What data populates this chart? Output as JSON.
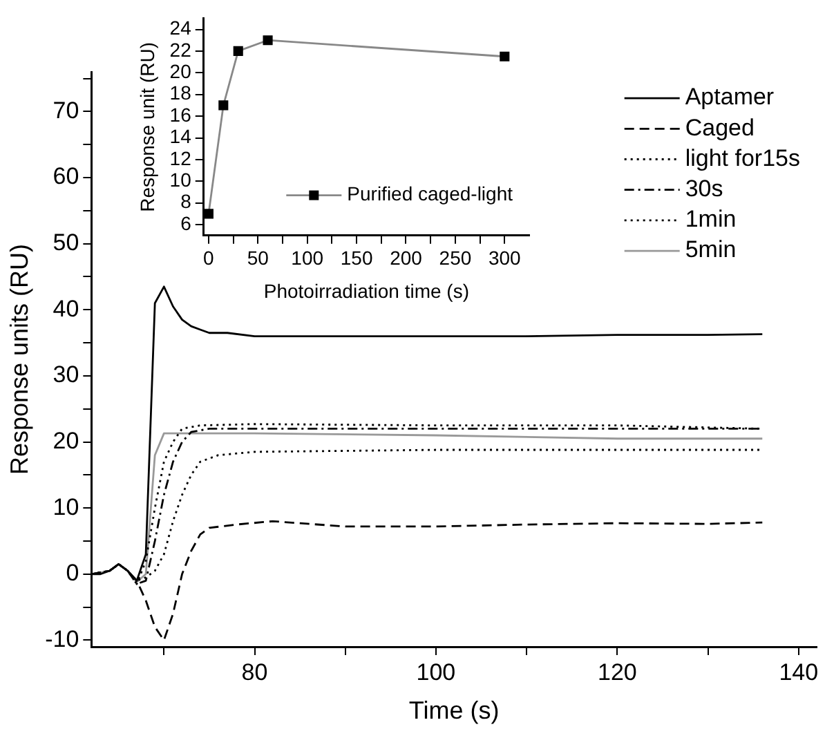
{
  "chart_data": [
    {
      "type": "line",
      "xlabel": "Time (s)",
      "ylabel": "Response units (RU)",
      "xlim": [
        62,
        142
      ],
      "ylim": [
        -11,
        76
      ],
      "xticks": [
        {
          "value": 70,
          "label": null
        },
        80,
        {
          "value": 90,
          "label": null
        },
        100,
        {
          "value": 110,
          "label": null
        },
        120,
        {
          "value": 130,
          "label": null
        },
        140
      ],
      "yticks": [
        -10,
        {
          "value": -5,
          "label": null
        },
        0,
        {
          "value": 5,
          "label": null
        },
        10,
        {
          "value": 15,
          "label": null
        },
        20,
        {
          "value": 25,
          "label": null
        },
        30,
        {
          "value": 35,
          "label": null
        },
        40,
        {
          "value": 45,
          "label": null
        },
        50,
        {
          "value": 55,
          "label": null
        },
        60,
        {
          "value": 65,
          "label": null
        },
        70,
        {
          "value": 75,
          "label": null
        }
      ],
      "grid": false,
      "legend": "top right",
      "marker": "none",
      "series": [
        {
          "name": "Aptamer",
          "color": "#000000",
          "line_style": "solid",
          "x": [
            62,
            63,
            64,
            65,
            66,
            67,
            68,
            69,
            70,
            71,
            72,
            73,
            74,
            75,
            77,
            80,
            90,
            100,
            110,
            120,
            130,
            136
          ],
          "values": [
            0,
            0,
            0.5,
            1.5,
            0.5,
            -1,
            3,
            41,
            43.5,
            40.5,
            38.5,
            37.5,
            37,
            36.5,
            36.5,
            36,
            36,
            36,
            36,
            36.2,
            36.2,
            36.3
          ]
        },
        {
          "name": "Caged",
          "color": "#000000",
          "line_style": "dashed",
          "x": [
            62,
            64,
            65,
            66,
            67,
            68,
            69,
            70,
            71,
            72,
            73,
            74,
            75,
            78,
            82,
            90,
            100,
            110,
            120,
            130,
            136
          ],
          "values": [
            0,
            0.5,
            1.5,
            0.5,
            -1,
            -4,
            -8,
            -10,
            -6,
            0,
            3.5,
            6,
            7,
            7.5,
            8,
            7.2,
            7.2,
            7.5,
            7.7,
            7.6,
            7.8
          ]
        },
        {
          "name": "light for15s",
          "color": "#000000",
          "line_style": "dotted",
          "x": [
            62,
            64,
            65,
            66,
            67,
            68,
            69,
            70,
            71,
            72,
            73,
            74,
            76,
            80,
            100,
            120,
            136
          ],
          "values": [
            0,
            0.5,
            1.5,
            0.5,
            -1,
            -0.5,
            0.5,
            3,
            8,
            12,
            15,
            17,
            18,
            18.5,
            18.8,
            18.8,
            18.8
          ]
        },
        {
          "name": "30s",
          "color": "#000000",
          "line_style": "dashdot",
          "x": [
            62,
            64,
            65,
            66,
            67,
            68,
            69,
            70,
            71,
            72,
            73,
            75,
            80,
            100,
            120,
            136
          ],
          "values": [
            0,
            0.5,
            1.5,
            0.5,
            -1.5,
            -1,
            5,
            12,
            17,
            20,
            21.5,
            22,
            22,
            22,
            22,
            22
          ]
        },
        {
          "name": "1min",
          "color": "#000000",
          "line_style": "dotted",
          "x": [
            62,
            64,
            65,
            66,
            67,
            68,
            69,
            70,
            71,
            72,
            74,
            80,
            100,
            120,
            136
          ],
          "values": [
            0,
            0.5,
            1.5,
            0.5,
            -1.5,
            2,
            10,
            17,
            20,
            22,
            22.5,
            22.7,
            22.5,
            22.5,
            22
          ]
        },
        {
          "name": "5min",
          "color": "#999999",
          "line_style": "solid",
          "x": [
            62,
            64,
            65,
            66,
            67,
            68,
            69,
            70,
            72,
            80,
            100,
            120,
            136
          ],
          "values": [
            0,
            0.5,
            1.5,
            0.5,
            -1.2,
            0,
            18,
            21.3,
            21.3,
            21.3,
            21,
            20.5,
            20.5
          ]
        }
      ]
    },
    {
      "type": "line",
      "xlabel": "Photoirradiation time (s)",
      "ylabel": "Response unit (RU)",
      "xlim": [
        -5,
        325
      ],
      "ylim": [
        5,
        25
      ],
      "xticks": [
        0,
        {
          "value": 25,
          "label": null
        },
        50,
        {
          "value": 75,
          "label": null
        },
        100,
        {
          "value": 125,
          "label": null
        },
        150,
        {
          "value": 175,
          "label": null
        },
        200,
        {
          "value": 225,
          "label": null
        },
        250,
        {
          "value": 275,
          "label": null
        },
        300
      ],
      "yticks": [
        6,
        8,
        10,
        12,
        14,
        16,
        18,
        20,
        22,
        24
      ],
      "grid": false,
      "legend": "bottom right",
      "marker": "square",
      "series": [
        {
          "name": "Purified caged-light",
          "color": "#888888",
          "line_style": "solid",
          "x": [
            0,
            15,
            30,
            60,
            300
          ],
          "values": [
            7,
            17,
            22,
            23,
            21.5
          ]
        }
      ]
    }
  ]
}
